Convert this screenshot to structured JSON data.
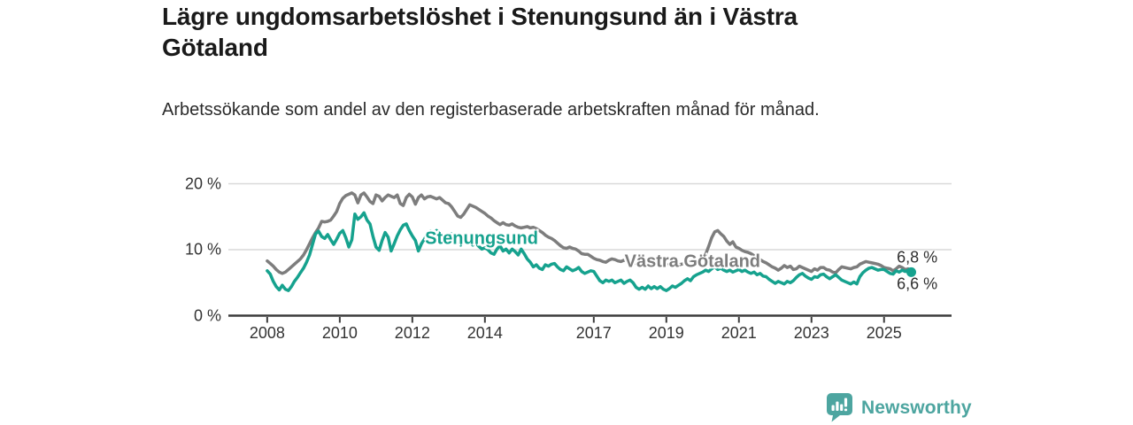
{
  "header": {
    "title": "Lägre ungdomsarbetslöshet i Stenungsund än i Västra Götaland",
    "subtitle": "Arbetssökande som andel av den registerbaserade arbetskraften månad för månad."
  },
  "chart_data": {
    "type": "line",
    "title": "Lägre ungdomsarbetslöshet i Stenungsund än i Västra Götaland",
    "subtitle": "Arbetssökande som andel av den registerbaserade arbetskraften månad för månad.",
    "unit": "percent",
    "frequency": "monthly",
    "xlim": [
      2006.93,
      2026.86
    ],
    "ylim": [
      0,
      20
    ],
    "grid": "horizontal",
    "legend_position": "inline-labels-on-lines",
    "y_ticks": [
      {
        "v": 20,
        "label": "20 %"
      },
      {
        "v": 10,
        "label": "10 %"
      },
      {
        "v": 0,
        "label": "0 %"
      }
    ],
    "x_ticks": [
      {
        "v": 2008,
        "label": "2008"
      },
      {
        "v": 2010,
        "label": "2010"
      },
      {
        "v": 2012,
        "label": "2012"
      },
      {
        "v": 2014,
        "label": "2014"
      },
      {
        "v": 2017,
        "label": "2017"
      },
      {
        "v": 2019,
        "label": "2019"
      },
      {
        "v": 2021,
        "label": "2021"
      },
      {
        "v": 2023,
        "label": "2023"
      },
      {
        "v": 2025,
        "label": "2025"
      }
    ],
    "axis_color": "#3c3c3c",
    "grid_color": "#d9d9d9",
    "end_label_color": "#2f2f2f",
    "series": [
      {
        "name": "Västra Götaland",
        "color": "#7d7d7d",
        "start_year": 2008,
        "start_month": 1,
        "end_value": 6.8,
        "end_label": {
          "text": "6,8 %",
          "x": 2025.35,
          "y": 8.8
        },
        "label": {
          "text": "Västra Götaland",
          "x": 2017.85,
          "y": 8.1
        },
        "end_dot": false,
        "values": [
          8.3,
          7.9,
          7.5,
          7.0,
          6.6,
          6.4,
          6.6,
          7.0,
          7.4,
          7.8,
          8.2,
          8.6,
          9.2,
          10.0,
          10.9,
          11.8,
          12.6,
          13.3,
          14.3,
          14.2,
          14.3,
          14.5,
          15.1,
          15.8,
          17.0,
          17.8,
          18.2,
          18.4,
          18.6,
          18.3,
          17.1,
          18.3,
          18.6,
          18.0,
          17.3,
          17.0,
          18.3,
          18.1,
          17.4,
          17.9,
          18.3,
          18.1,
          17.9,
          18.3,
          17.0,
          16.7,
          17.9,
          18.4,
          18.0,
          16.9,
          17.9,
          18.3,
          17.7,
          18.0,
          18.1,
          17.9,
          17.7,
          17.9,
          17.5,
          17.1,
          17.0,
          16.5,
          15.8,
          15.1,
          14.9,
          15.4,
          16.1,
          16.8,
          16.6,
          16.4,
          16.1,
          15.8,
          15.5,
          15.1,
          14.8,
          14.4,
          14.1,
          13.8,
          14.1,
          13.8,
          13.7,
          13.9,
          13.6,
          13.4,
          13.3,
          13.4,
          13.5,
          13.3,
          13.4,
          13.2,
          12.9,
          12.6,
          12.2,
          11.9,
          11.7,
          11.4,
          11.0,
          10.6,
          10.3,
          10.2,
          10.4,
          10.2,
          10.1,
          9.8,
          9.4,
          9.3,
          9.3,
          9.0,
          8.7,
          8.5,
          8.4,
          8.2,
          8.1,
          8.4,
          8.6,
          8.5,
          8.3,
          8.2,
          8.4,
          8.3,
          8.4,
          8.2,
          7.9,
          7.7,
          7.9,
          8.1,
          7.9,
          7.8,
          7.9,
          7.7,
          7.8,
          7.7,
          7.7,
          7.8,
          7.6,
          7.5,
          7.7,
          7.8,
          7.9,
          8.0,
          8.1,
          8.2,
          8.4,
          8.6,
          8.8,
          9.3,
          10.5,
          11.8,
          12.7,
          12.9,
          12.4,
          12.0,
          11.3,
          10.8,
          11.2,
          10.4,
          10.2,
          9.9,
          9.7,
          9.6,
          9.4,
          9.1,
          8.8,
          8.5,
          8.2,
          8.0,
          7.7,
          7.4,
          7.2,
          6.9,
          7.2,
          7.6,
          7.3,
          7.5,
          7.0,
          7.1,
          7.5,
          7.3,
          7.1,
          6.9,
          6.7,
          7.1,
          6.9,
          7.3,
          7.3,
          7.0,
          6.9,
          6.6,
          6.5,
          7.0,
          7.4,
          7.3,
          7.2,
          7.1,
          7.3,
          7.4,
          7.8,
          8.0,
          8.2,
          8.1,
          8.0,
          7.9,
          7.8,
          7.6,
          7.3,
          7.2,
          7.1,
          6.8,
          7.1,
          7.5,
          7.3,
          7.0,
          7.1,
          6.8
        ]
      },
      {
        "name": "Stenungsund",
        "color": "#16a28e",
        "start_year": 2008,
        "start_month": 1,
        "end_value": 6.6,
        "end_label": {
          "text": "6,6 %",
          "x": 2025.35,
          "y": 4.7
        },
        "label": {
          "text": "Stenungsund",
          "x": 2012.35,
          "y": 11.6
        },
        "end_dot": true,
        "values": [
          6.8,
          6.3,
          5.2,
          4.4,
          3.9,
          4.6,
          4.0,
          3.8,
          4.4,
          5.2,
          5.8,
          6.5,
          7.2,
          8.1,
          9.2,
          10.8,
          12.4,
          12.8,
          12.0,
          11.7,
          12.3,
          11.5,
          10.8,
          11.6,
          12.5,
          12.9,
          11.8,
          10.4,
          11.5,
          15.4,
          14.6,
          15.0,
          15.6,
          14.5,
          13.9,
          12.0,
          10.4,
          9.9,
          11.4,
          12.6,
          11.9,
          9.8,
          10.9,
          12.1,
          13.0,
          13.7,
          13.9,
          12.9,
          12.1,
          11.4,
          9.8,
          10.9,
          11.6,
          12.4,
          12.8,
          12.4,
          12.9,
          12.4,
          11.9,
          11.4,
          11.9,
          12.4,
          11.8,
          11.2,
          10.7,
          11.2,
          11.6,
          11.1,
          10.7,
          11.0,
          10.5,
          10.1,
          10.3,
          10.0,
          9.5,
          9.3,
          10.1,
          10.6,
          9.8,
          10.1,
          9.5,
          10.1,
          9.7,
          9.2,
          10.1,
          9.4,
          8.6,
          8.1,
          7.4,
          7.7,
          7.2,
          7.0,
          7.7,
          7.5,
          7.8,
          7.9,
          7.4,
          7.0,
          6.8,
          7.4,
          7.1,
          6.8,
          7.0,
          7.3,
          6.7,
          6.4,
          6.6,
          6.8,
          6.7,
          6.0,
          5.3,
          5.0,
          5.4,
          5.2,
          5.4,
          5.0,
          5.2,
          5.4,
          4.9,
          5.2,
          5.4,
          5.0,
          4.3,
          4.0,
          4.3,
          4.0,
          4.5,
          4.1,
          4.4,
          4.1,
          4.4,
          4.0,
          3.8,
          4.1,
          4.5,
          4.3,
          4.6,
          4.9,
          5.3,
          5.6,
          5.3,
          5.9,
          6.2,
          6.4,
          6.6,
          6.9,
          6.7,
          7.1,
          7.4,
          7.0,
          7.2,
          6.9,
          6.7,
          6.9,
          6.6,
          6.8,
          7.0,
          6.7,
          6.9,
          6.6,
          6.4,
          6.6,
          6.2,
          6.4,
          6.0,
          5.9,
          5.5,
          5.2,
          4.9,
          5.2,
          5.0,
          4.8,
          5.2,
          5.0,
          5.3,
          5.8,
          6.2,
          6.4,
          6.0,
          5.7,
          5.5,
          5.9,
          5.8,
          6.2,
          6.3,
          5.9,
          5.6,
          5.9,
          6.2,
          5.8,
          5.4,
          5.2,
          5.0,
          4.8,
          5.1,
          4.8,
          5.9,
          6.5,
          6.9,
          7.2,
          7.3,
          7.1,
          6.9,
          7.0,
          7.0,
          6.7,
          6.4,
          6.3,
          6.8,
          6.6,
          6.9,
          6.7,
          6.9,
          6.6
        ]
      }
    ]
  },
  "footer": {
    "brand": "Newsworthy",
    "brand_color": "#4da5a0",
    "icon": "bar-chart-speech-bubble-icon"
  }
}
